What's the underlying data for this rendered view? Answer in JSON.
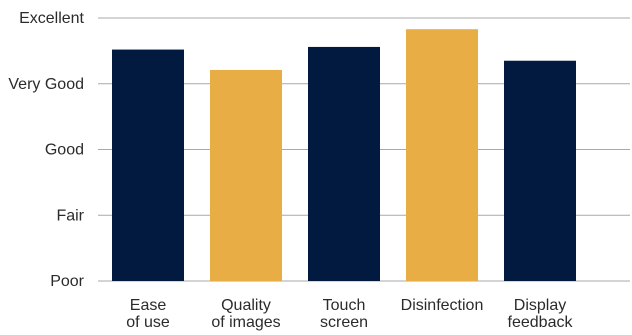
{
  "chart_data": {
    "type": "bar",
    "categories": [
      "Ease\nof use",
      "Quality\nof images",
      "Touch\nscreen",
      "Disinfection",
      "Display\nfeedback"
    ],
    "values": [
      3.52,
      3.21,
      3.56,
      3.83,
      3.35
    ],
    "bar_colors": [
      "#021a3f",
      "#e8ad45",
      "#021a3f",
      "#e8ad45",
      "#021a3f"
    ],
    "y_ticks": [
      {
        "value": 0,
        "label": "Poor"
      },
      {
        "value": 1,
        "label": "Fair"
      },
      {
        "value": 2,
        "label": "Good"
      },
      {
        "value": 3,
        "label": "Very Good"
      },
      {
        "value": 4,
        "label": "Excellent"
      }
    ],
    "ylim": [
      0,
      4
    ],
    "grid": true,
    "title": "",
    "xlabel": "",
    "ylabel": ""
  }
}
